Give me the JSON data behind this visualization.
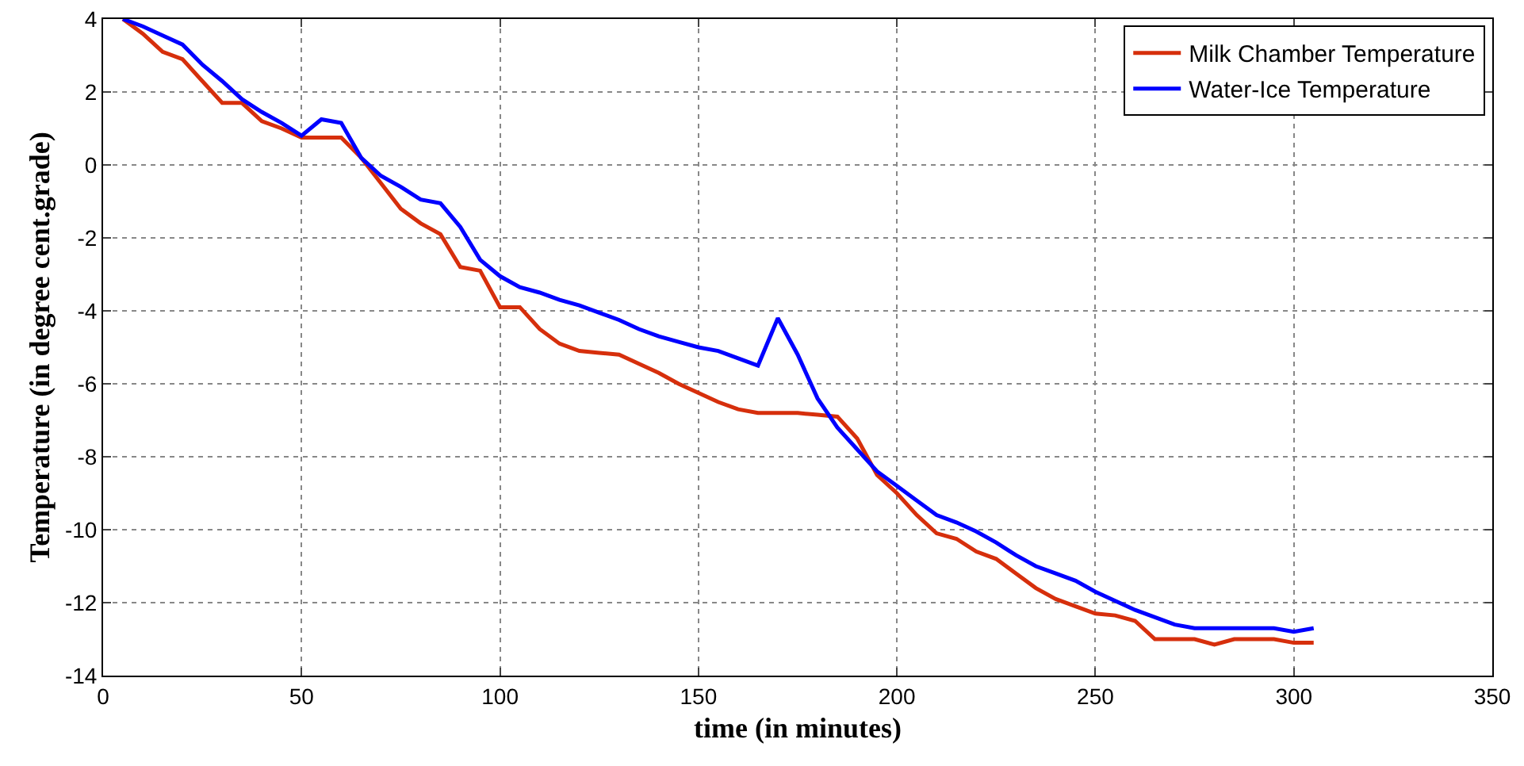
{
  "chart_data": {
    "type": "line",
    "xlabel": "time (in minutes)",
    "ylabel": "Temperature (in degree cent.grade)",
    "x": [
      5,
      10,
      15,
      20,
      25,
      30,
      35,
      40,
      45,
      50,
      55,
      60,
      65,
      70,
      75,
      80,
      85,
      90,
      95,
      100,
      105,
      110,
      115,
      120,
      125,
      130,
      135,
      140,
      145,
      150,
      155,
      160,
      165,
      170,
      175,
      180,
      185,
      190,
      195,
      200,
      205,
      210,
      215,
      220,
      225,
      230,
      235,
      240,
      245,
      250,
      255,
      260,
      265,
      270,
      275,
      280,
      285,
      290,
      295,
      300,
      305
    ],
    "series": [
      {
        "name": "Milk Chamber Temperature",
        "color": "#d62f0c",
        "values": [
          4,
          3.6,
          3.1,
          2.9,
          2.3,
          1.7,
          1.7,
          1.2,
          1.0,
          0.75,
          0.75,
          0.75,
          0.2,
          -0.5,
          -1.2,
          -1.6,
          -1.9,
          -2.8,
          -2.9,
          -3.9,
          -3.9,
          -4.5,
          -4.9,
          -5.1,
          -5.15,
          -5.2,
          -5.45,
          -5.7,
          -6.0,
          -6.25,
          -6.5,
          -6.7,
          -6.8,
          -6.8,
          -6.8,
          -6.85,
          -6.9,
          -7.5,
          -8.5,
          -9.0,
          -9.6,
          -10.1,
          -10.25,
          -10.6,
          -10.8,
          -11.2,
          -11.6,
          -11.9,
          -12.1,
          -12.3,
          -12.35,
          -12.5,
          -13.0,
          -13.0,
          -13.0,
          -13.15,
          -13.0,
          -13.0,
          -13.0,
          -13.1,
          -13.1
        ]
      },
      {
        "name": "Water-Ice Temperature",
        "color": "#0000ff",
        "values": [
          4,
          3.8,
          3.55,
          3.3,
          2.75,
          2.3,
          1.8,
          1.45,
          1.15,
          0.8,
          1.25,
          1.15,
          0.2,
          -0.3,
          -0.6,
          -0.95,
          -1.05,
          -1.7,
          -2.6,
          -3.05,
          -3.35,
          -3.5,
          -3.7,
          -3.85,
          -4.05,
          -4.25,
          -4.5,
          -4.7,
          -4.85,
          -5.0,
          -5.1,
          -5.3,
          -5.5,
          -4.2,
          -5.2,
          -6.4,
          -7.2,
          -7.8,
          -8.4,
          -8.8,
          -9.2,
          -9.6,
          -9.8,
          -10.05,
          -10.35,
          -10.7,
          -11.0,
          -11.2,
          -11.4,
          -11.7,
          -11.95,
          -12.2,
          -12.4,
          -12.6,
          -12.7,
          -12.7,
          -12.7,
          -12.7,
          -12.7,
          -12.8,
          -12.7
        ]
      }
    ],
    "xlim": [
      0,
      350
    ],
    "xticks": [
      0,
      50,
      100,
      150,
      200,
      250,
      300,
      350
    ],
    "ylim": [
      -14,
      4
    ],
    "yticks": [
      -14,
      -12,
      -10,
      -8,
      -6,
      -4,
      -2,
      0,
      2,
      4
    ],
    "grid": true,
    "legend": "top right",
    "marker": "none",
    "line_style": "solid"
  }
}
